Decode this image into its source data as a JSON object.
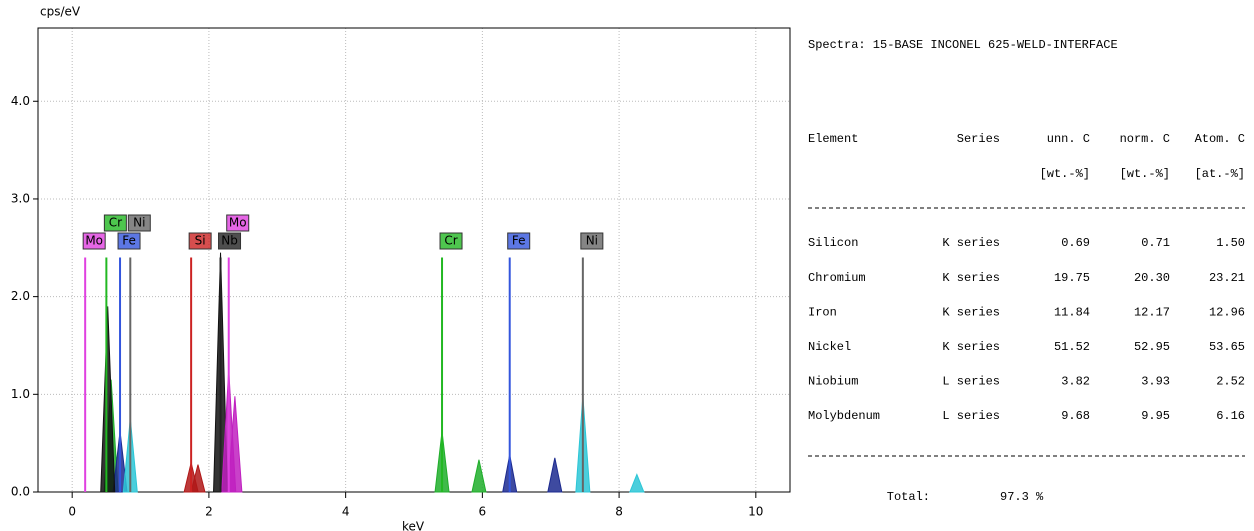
{
  "chart_data": {
    "type": "spectrum",
    "ylabel": "cps/eV",
    "xlabel": "keV",
    "xlim": [
      -0.5,
      10.5
    ],
    "ylim": [
      0,
      4.75
    ],
    "xticks": [
      0,
      2,
      4,
      6,
      8,
      10
    ],
    "yticks": [
      {
        "value": 0,
        "label": "0.0"
      },
      {
        "value": 1,
        "label": "1.0"
      },
      {
        "value": 2,
        "label": "2.0"
      },
      {
        "value": 3,
        "label": "3.0"
      },
      {
        "value": 4,
        "label": "4.0"
      }
    ],
    "grid": true,
    "markers": [
      {
        "label": "Mo",
        "x": 0.19,
        "y": 2.4,
        "color": "#e040e0"
      },
      {
        "label": "Cr",
        "x": 0.5,
        "y": 2.4,
        "color": "#22b822"
      },
      {
        "label": "Fe",
        "x": 0.7,
        "y": 2.4,
        "color": "#3355dd"
      },
      {
        "label": "Ni",
        "x": 0.85,
        "y": 2.4,
        "color": "#666666"
      },
      {
        "label": "Si",
        "x": 1.74,
        "y": 2.4,
        "color": "#cc2222"
      },
      {
        "label": "Nb",
        "x": 2.17,
        "y": 2.4,
        "color": "#222222"
      },
      {
        "label": "Mo",
        "x": 2.29,
        "y": 2.4,
        "color": "#e040e0"
      },
      {
        "label": "Cr",
        "x": 5.41,
        "y": 2.4,
        "color": "#22b822"
      },
      {
        "label": "Fe",
        "x": 6.4,
        "y": 2.4,
        "color": "#3355dd"
      },
      {
        "label": "Ni",
        "x": 7.47,
        "y": 2.4,
        "color": "#666666"
      }
    ],
    "series": [
      {
        "color": "#1fae2a",
        "x": [
          0.57,
          5.41,
          5.95
        ],
        "values": [
          1.15,
          0.62,
          0.33
        ]
      },
      {
        "color": "#1c2a8f",
        "x": [
          0.7,
          6.4,
          7.06
        ],
        "values": [
          0.62,
          0.38,
          0.35
        ]
      },
      {
        "color": "#2cc6d6",
        "x": [
          0.85,
          7.47,
          8.26
        ],
        "values": [
          0.75,
          0.98,
          0.18
        ]
      },
      {
        "color": "#b01818",
        "x": [
          1.74,
          1.84
        ],
        "values": [
          0.3,
          0.28
        ]
      },
      {
        "color": "#111111",
        "x": [
          0.52,
          2.17
        ],
        "values": [
          1.9,
          2.45
        ]
      },
      {
        "color": "#c020c0",
        "x": [
          2.29,
          2.38
        ],
        "values": [
          1.25,
          0.98
        ]
      }
    ]
  },
  "table": {
    "title": "Spectra: 15-BASE INCONEL 625-WELD-INTERFACE",
    "columns": [
      {
        "name": "Element"
      },
      {
        "name": "Series"
      },
      {
        "name": "unn. C",
        "unit": "[wt.-%]"
      },
      {
        "name": "norm. C",
        "unit": "[wt.-%]"
      },
      {
        "name": "Atom. C",
        "unit": "[at.-%]"
      }
    ],
    "rows": [
      [
        "Silicon",
        "K series",
        "0.69",
        "0.71",
        "1.50"
      ],
      [
        "Chromium",
        "K series",
        "19.75",
        "20.30",
        "23.21"
      ],
      [
        "Iron",
        "K series",
        "11.84",
        "12.17",
        "12.96"
      ],
      [
        "Nickel",
        "K series",
        "51.52",
        "52.95",
        "53.65"
      ],
      [
        "Niobium",
        "L series",
        "3.82",
        "3.93",
        "2.52"
      ],
      [
        "Molybdenum",
        "L series",
        "9.68",
        "9.95",
        "6.16"
      ]
    ],
    "total": {
      "label": "Total:",
      "value": "97.3 %"
    }
  }
}
